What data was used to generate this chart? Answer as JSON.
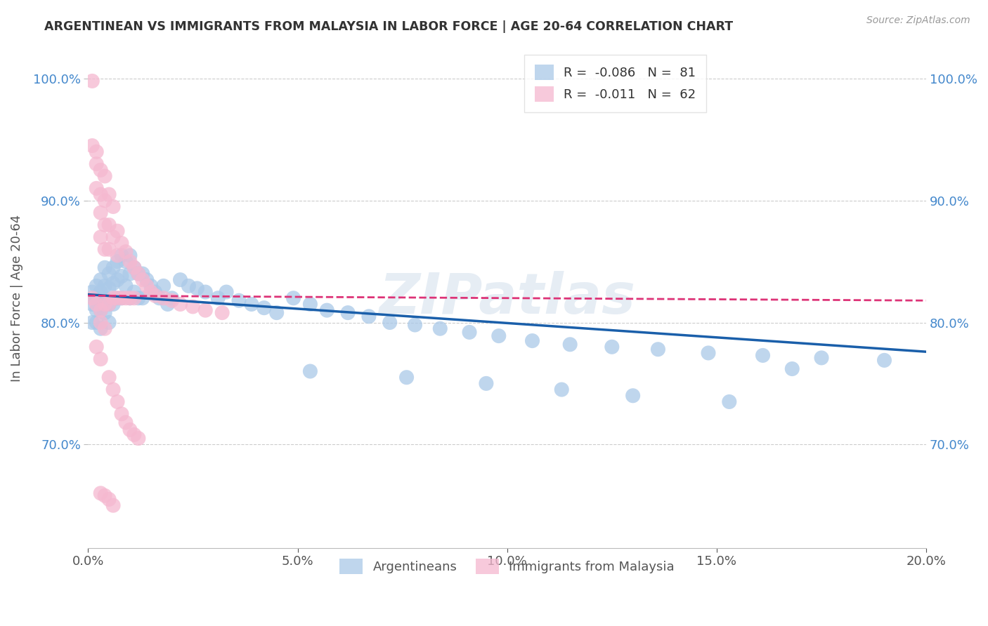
{
  "title": "ARGENTINEAN VS IMMIGRANTS FROM MALAYSIA IN LABOR FORCE | AGE 20-64 CORRELATION CHART",
  "source": "Source: ZipAtlas.com",
  "ylabel": "In Labor Force | Age 20-64",
  "xlim": [
    0.0,
    0.2
  ],
  "ylim": [
    0.615,
    1.025
  ],
  "xticks": [
    0.0,
    0.05,
    0.1,
    0.15,
    0.2
  ],
  "yticks": [
    0.7,
    0.8,
    0.9,
    1.0
  ],
  "ytick_labels": [
    "70.0%",
    "80.0%",
    "90.0%",
    "100.0%"
  ],
  "xtick_labels": [
    "0.0%",
    "5.0%",
    "10.0%",
    "15.0%",
    "20.0%"
  ],
  "blue_R": -0.086,
  "blue_N": 81,
  "pink_R": -0.011,
  "pink_N": 62,
  "blue_color": "#aac9e8",
  "pink_color": "#f5b8d0",
  "blue_line_color": "#1a5faa",
  "pink_line_color": "#dd3377",
  "watermark": "ZIPatlas",
  "legend_label_blue": "Argentineans",
  "legend_label_pink": "Immigrants from Malaysia",
  "blue_points_x": [
    0.001,
    0.001,
    0.001,
    0.002,
    0.002,
    0.002,
    0.002,
    0.003,
    0.003,
    0.003,
    0.003,
    0.004,
    0.004,
    0.004,
    0.004,
    0.005,
    0.005,
    0.005,
    0.005,
    0.006,
    0.006,
    0.006,
    0.007,
    0.007,
    0.007,
    0.008,
    0.008,
    0.008,
    0.009,
    0.009,
    0.01,
    0.01,
    0.01,
    0.011,
    0.011,
    0.012,
    0.012,
    0.013,
    0.013,
    0.014,
    0.015,
    0.016,
    0.017,
    0.018,
    0.019,
    0.02,
    0.022,
    0.024,
    0.026,
    0.028,
    0.031,
    0.033,
    0.036,
    0.039,
    0.042,
    0.045,
    0.049,
    0.053,
    0.057,
    0.062,
    0.067,
    0.072,
    0.078,
    0.084,
    0.091,
    0.098,
    0.106,
    0.115,
    0.125,
    0.136,
    0.148,
    0.161,
    0.175,
    0.19,
    0.053,
    0.076,
    0.095,
    0.113,
    0.13,
    0.153,
    0.168
  ],
  "blue_points_y": [
    0.825,
    0.815,
    0.8,
    0.83,
    0.82,
    0.81,
    0.8,
    0.835,
    0.825,
    0.81,
    0.795,
    0.845,
    0.83,
    0.82,
    0.808,
    0.84,
    0.828,
    0.815,
    0.8,
    0.845,
    0.832,
    0.815,
    0.85,
    0.835,
    0.82,
    0.855,
    0.838,
    0.82,
    0.85,
    0.83,
    0.855,
    0.84,
    0.82,
    0.845,
    0.825,
    0.84,
    0.82,
    0.84,
    0.82,
    0.835,
    0.83,
    0.825,
    0.82,
    0.83,
    0.815,
    0.82,
    0.835,
    0.83,
    0.828,
    0.825,
    0.82,
    0.825,
    0.818,
    0.815,
    0.812,
    0.808,
    0.82,
    0.815,
    0.81,
    0.808,
    0.805,
    0.8,
    0.798,
    0.795,
    0.792,
    0.789,
    0.785,
    0.782,
    0.78,
    0.778,
    0.775,
    0.773,
    0.771,
    0.769,
    0.76,
    0.755,
    0.75,
    0.745,
    0.74,
    0.735,
    0.762
  ],
  "pink_points_x": [
    0.001,
    0.001,
    0.001,
    0.002,
    0.002,
    0.002,
    0.002,
    0.003,
    0.003,
    0.003,
    0.003,
    0.003,
    0.004,
    0.004,
    0.004,
    0.004,
    0.004,
    0.005,
    0.005,
    0.005,
    0.005,
    0.006,
    0.006,
    0.006,
    0.007,
    0.007,
    0.007,
    0.008,
    0.008,
    0.009,
    0.009,
    0.01,
    0.01,
    0.011,
    0.011,
    0.012,
    0.013,
    0.014,
    0.015,
    0.016,
    0.018,
    0.02,
    0.022,
    0.025,
    0.028,
    0.032,
    0.003,
    0.004,
    0.002,
    0.003,
    0.005,
    0.006,
    0.007,
    0.008,
    0.009,
    0.01,
    0.011,
    0.012,
    0.003,
    0.004,
    0.005,
    0.006
  ],
  "pink_points_y": [
    0.998,
    0.945,
    0.82,
    0.94,
    0.93,
    0.91,
    0.815,
    0.925,
    0.905,
    0.89,
    0.87,
    0.81,
    0.92,
    0.9,
    0.88,
    0.86,
    0.815,
    0.905,
    0.88,
    0.86,
    0.815,
    0.895,
    0.87,
    0.82,
    0.875,
    0.855,
    0.82,
    0.865,
    0.82,
    0.858,
    0.82,
    0.85,
    0.82,
    0.845,
    0.82,
    0.84,
    0.835,
    0.83,
    0.825,
    0.822,
    0.82,
    0.818,
    0.815,
    0.813,
    0.81,
    0.808,
    0.8,
    0.795,
    0.78,
    0.77,
    0.755,
    0.745,
    0.735,
    0.725,
    0.718,
    0.712,
    0.708,
    0.705,
    0.66,
    0.658,
    0.655,
    0.65
  ]
}
